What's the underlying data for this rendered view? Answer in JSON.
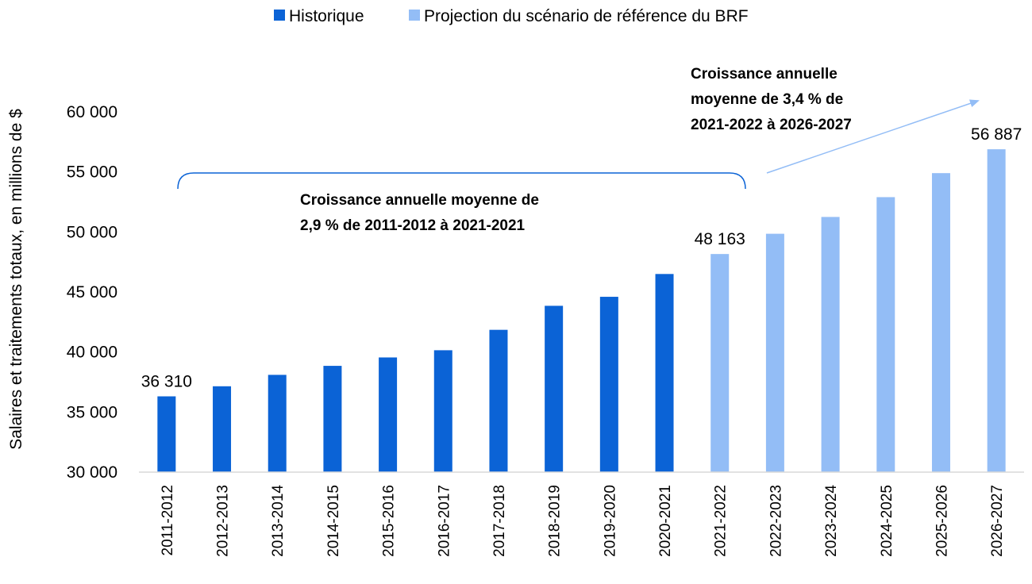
{
  "chart_data": {
    "type": "bar",
    "title": "",
    "xlabel": "",
    "ylabel": "Salaires et traitements totaux, en millions de $",
    "ylim": [
      30000,
      60000
    ],
    "yticks": [
      "30 000",
      "35 000",
      "40 000",
      "45 000",
      "50 000",
      "55 000",
      "60 000"
    ],
    "ytick_values": [
      30000,
      35000,
      40000,
      45000,
      50000,
      55000,
      60000
    ],
    "grid": false,
    "legend_position": "top-center",
    "categories": [
      "2011-2012",
      "2012-2013",
      "2013-2014",
      "2014-2015",
      "2015-2016",
      "2016-2017",
      "2017-2018",
      "2018-2019",
      "2019-2020",
      "2020-2021",
      "2021-2022",
      "2022-2023",
      "2023-2024",
      "2024-2025",
      "2025-2026",
      "2026-2027"
    ],
    "series": [
      {
        "name": "Historique",
        "color": "#0b63d6",
        "values": [
          36310,
          37150,
          38100,
          38850,
          39550,
          40150,
          41850,
          43850,
          44600,
          46500,
          null,
          null,
          null,
          null,
          null,
          null
        ]
      },
      {
        "name": "Projection du scénario de référence du BRF",
        "color": "#93bdf6",
        "values": [
          null,
          null,
          null,
          null,
          null,
          null,
          null,
          null,
          null,
          null,
          48163,
          49850,
          51250,
          52900,
          54900,
          56887
        ]
      }
    ],
    "data_labels": [
      {
        "index": 0,
        "text": "36 310"
      },
      {
        "index": 10,
        "text": "48 163"
      },
      {
        "index": 15,
        "text": "56 887"
      }
    ],
    "annotations": [
      {
        "name": "historical-growth",
        "lines": [
          "Croissance annuelle moyenne de",
          "2,9 % de 2011-2012 à 2021-2021"
        ]
      },
      {
        "name": "projected-growth",
        "lines": [
          "Croissance annuelle",
          "moyenne de 3,4 % de",
          "2021-2022 à 2026-2027"
        ]
      }
    ]
  }
}
